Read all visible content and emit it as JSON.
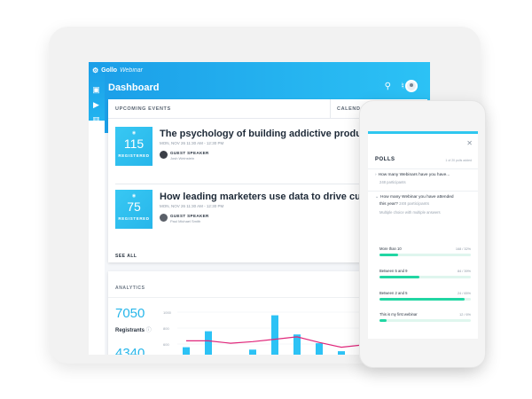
{
  "brand": {
    "name": "Gollo",
    "suffix": "Webinar"
  },
  "header": {
    "title": "Dashboard"
  },
  "icons": {
    "search": "search-icon",
    "bell": "bell-icon",
    "avatar": "avatar"
  },
  "rail": [
    "camera-icon",
    "play-icon",
    "bar-chart-icon",
    "gear-icon"
  ],
  "events_card": {
    "tab_upcoming": "UPCOMING EVENTS",
    "tab_calendar": "CALENDAR",
    "see_all": "SEE ALL",
    "events": [
      {
        "count": "115",
        "count_label": "REGISTERED",
        "title": "The psychology of building addictive products.",
        "meta": "MON, NOV 26    11:30 AM - 12:30 PM",
        "guest_label": "GUEST SPEAKER",
        "guest_name": "Josh Weinstein"
      },
      {
        "count": "75",
        "count_label": "REGISTERED",
        "title": "How leading marketers use data to drive customer",
        "meta": "MON, NOV 26    11:30 AM - 12:30 PM",
        "guest_label": "GUEST SPEAKER",
        "guest_name": "Paul Michael Smith"
      }
    ]
  },
  "analytics": {
    "title": "ANALYTICS",
    "registrants_value": "7050",
    "registrants_label": "Registrants",
    "second_value": "4340",
    "y_ticks": [
      "1000",
      "800",
      "600"
    ]
  },
  "chart_data": {
    "type": "bar",
    "y_ticks": [
      1000,
      800,
      600
    ],
    "bars": [
      560,
      760,
      420,
      530,
      960,
      720,
      610,
      510,
      910,
      610,
      580
    ],
    "line": [
      640,
      640,
      610,
      630,
      660,
      690,
      620,
      560,
      590,
      560,
      610
    ],
    "bar_color": "#2cc2f5",
    "line_color": "#e0267a"
  },
  "polls": {
    "title": "POLLS",
    "count": "1 of 20 polls added",
    "close_icon": "close-icon",
    "q1": {
      "text": "How many Webinars have you have...",
      "sub": "248 participants"
    },
    "q2": {
      "line1": "How many Webinar you have attended",
      "line2_a": "this year?",
      "line2_b": "248 participants",
      "sub": "Multiple choice with multiple answers"
    },
    "options": [
      {
        "label": "More than 10",
        "value": "168 / 32%",
        "fraction": 0.2
      },
      {
        "label": "Between 5 and 9",
        "value": "84 / 39%",
        "fraction": 0.44
      },
      {
        "label": "Between 2 and 5",
        "value": "24 / 65%",
        "fraction": 0.93
      },
      {
        "label": "This is my first webinar",
        "value": "12 / 6%",
        "fraction": 0.08
      }
    ]
  }
}
